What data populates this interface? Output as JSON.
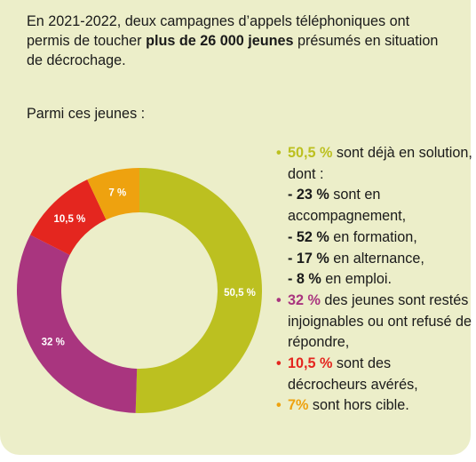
{
  "intro": {
    "before": "En 2021-2022, deux campagnes d’appels téléphoniques ont permis de toucher ",
    "bold": "plus de 26 000 jeunes",
    "after": " présumés en situation de décrochage."
  },
  "subtitle": "Parmi ces jeunes :",
  "legend": {
    "item1": {
      "pct": "50,5 %",
      "text": " sont déjà en solution, dont :",
      "subs": [
        {
          "prefix": "- 23 %",
          "text": " sont en accompagnement,"
        },
        {
          "prefix": "- 52 %",
          "text": " en formation,"
        },
        {
          "prefix": "- 17 %",
          "text": " en alternance,"
        },
        {
          "prefix": "- 8 %",
          "text": " en emploi."
        }
      ]
    },
    "item2": {
      "pct": "32 %",
      "text": " des jeunes sont restés injoignables ou ont refusé de répondre,"
    },
    "item3": {
      "pct": "10,5 %",
      "text": " sont des décrocheurs avérés,"
    },
    "item4": {
      "pct": "7%",
      "text": " sont hors cible."
    }
  },
  "chart_data": {
    "type": "pie",
    "style": "donut",
    "categories": [
      "50,5 %",
      "32 %",
      "10,5 %",
      "7 %"
    ],
    "values": [
      50.5,
      32,
      10.5,
      7
    ],
    "colors": [
      "#bcc020",
      "#a9357f",
      "#e4261f",
      "#eea20f"
    ],
    "data_labels": [
      "50,5 %",
      "32 %",
      "10,5 %",
      "7 %"
    ]
  },
  "colors": {
    "background": "#eceec9",
    "text": "#1a1a1a",
    "green": "#bcc020",
    "purple": "#a9357f",
    "red": "#e4261f",
    "orange": "#eea20f"
  }
}
